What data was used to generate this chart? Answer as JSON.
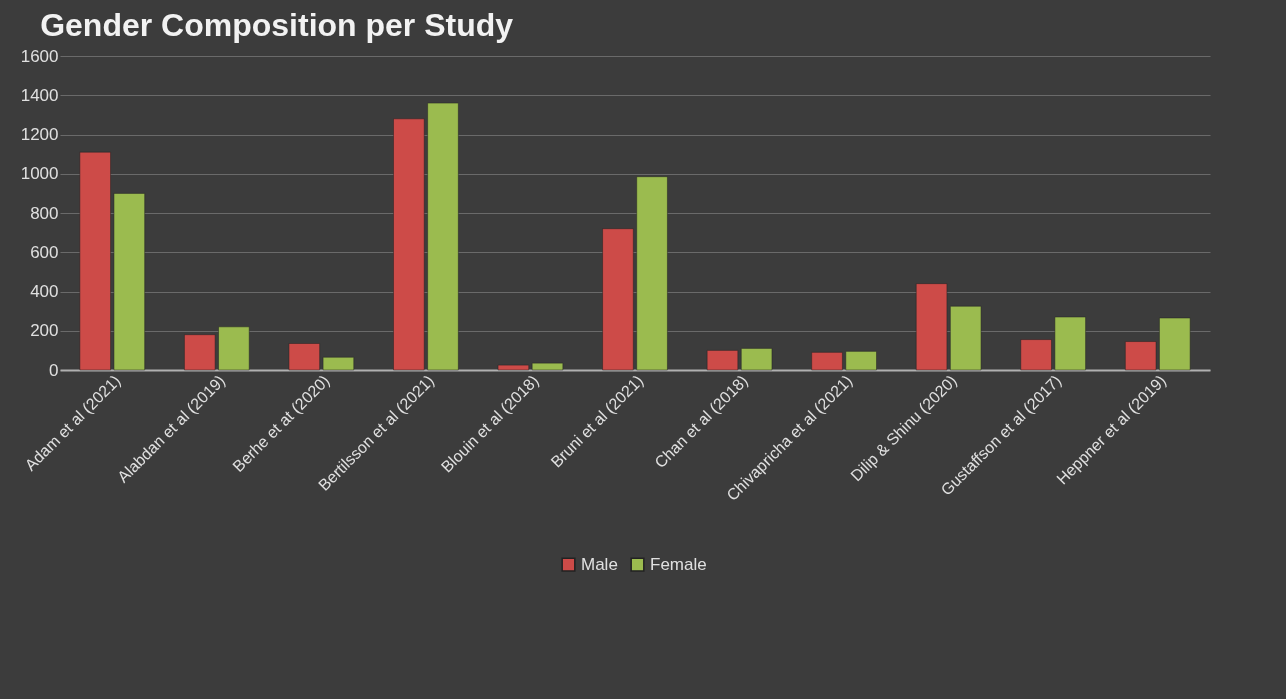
{
  "chart_data": {
    "type": "bar",
    "title": "Gender Composition per Study",
    "categories": [
      "Adam et al (2021)",
      "Alabdan et al (2019)",
      "Berhe et at (2020)",
      "Bertilsson et al (2021)",
      "Blouin et al (2018)",
      "Bruni et al (2021)",
      "Chan et al (2018)",
      "Chivapricha et al (2021)",
      "Dilip & Shinu (2020)",
      "Gustaffson et al (2017)",
      "Heppner et al (2019)"
    ],
    "series": [
      {
        "name": "Male",
        "color": "#cd4b48",
        "values": [
          1110,
          180,
          135,
          1280,
          25,
          720,
          100,
          90,
          440,
          155,
          145
        ]
      },
      {
        "name": "Female",
        "color": "#9bbb4f",
        "values": [
          900,
          220,
          65,
          1360,
          35,
          985,
          110,
          95,
          325,
          270,
          265
        ]
      }
    ],
    "ylim": [
      0,
      1600
    ],
    "yticks": [
      0,
      200,
      400,
      600,
      800,
      1000,
      1200,
      1400,
      1600
    ],
    "grid": "y",
    "legend": "bottom"
  }
}
